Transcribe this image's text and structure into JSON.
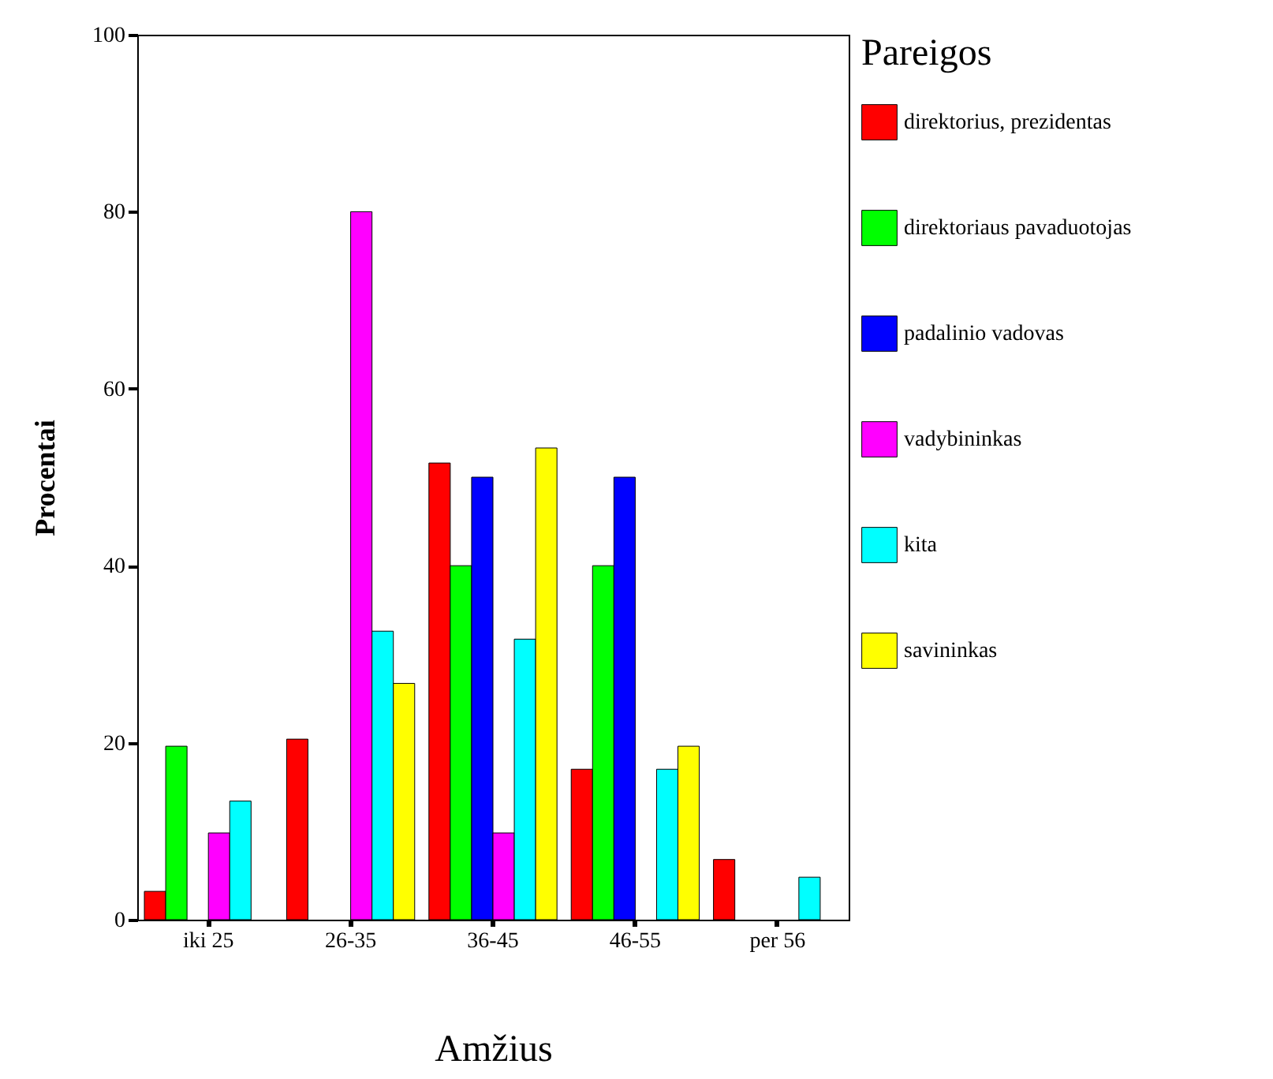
{
  "chart_data": {
    "type": "bar",
    "xlabel": "Amžius",
    "ylabel": "Procentai",
    "legend_title": "Pareigos",
    "legend": "right",
    "grid": false,
    "categories": [
      "iki 25",
      "26-35",
      "36-45",
      "46-55",
      "per 56"
    ],
    "ylim": [
      0,
      100
    ],
    "yticks": [
      0,
      20,
      40,
      60,
      80,
      100
    ],
    "series": [
      {
        "name": "direktorius, prezidentas",
        "color": "#ff0000",
        "values": [
          3.2,
          20.4,
          51.6,
          17,
          6.8
        ]
      },
      {
        "name": "direktoriaus pavaduotojas",
        "color": "#00ff00",
        "values": [
          19.6,
          0,
          40,
          40,
          0
        ]
      },
      {
        "name": "padalinio vadovas",
        "color": "#0000ff",
        "values": [
          0,
          0,
          50,
          50,
          0
        ]
      },
      {
        "name": "vadybininkas",
        "color": "#ff00ff",
        "values": [
          9.8,
          80,
          9.8,
          0,
          0
        ]
      },
      {
        "name": "kita",
        "color": "#00ffff",
        "values": [
          13.4,
          32.6,
          31.7,
          17,
          4.8
        ]
      },
      {
        "name": "savininkas",
        "color": "#ffff00",
        "values": [
          0,
          26.7,
          53.3,
          19.6,
          0
        ]
      }
    ]
  }
}
